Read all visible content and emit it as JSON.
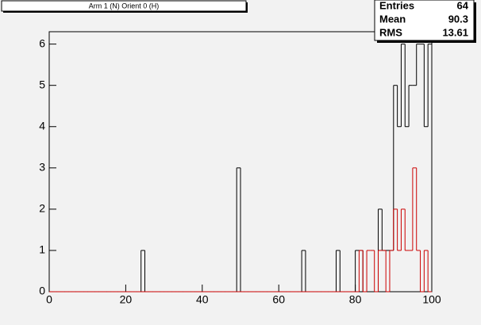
{
  "chart_data": {
    "type": "histogram",
    "title": "Arm 1 (N) Orient 0 (H)",
    "bins": [
      0,
      1,
      2,
      3,
      4,
      5,
      6,
      7,
      8,
      9,
      10,
      11,
      12,
      13,
      14,
      15,
      16,
      17,
      18,
      19,
      20,
      21,
      22,
      23,
      24,
      25,
      26,
      27,
      28,
      29,
      30,
      31,
      32,
      33,
      34,
      35,
      36,
      37,
      38,
      39,
      40,
      41,
      42,
      43,
      44,
      45,
      46,
      47,
      48,
      49,
      50,
      51,
      52,
      53,
      54,
      55,
      56,
      57,
      58,
      59,
      60,
      61,
      62,
      63,
      64,
      65,
      66,
      67,
      68,
      69,
      70,
      71,
      72,
      73,
      74,
      75,
      76,
      77,
      78,
      79,
      80,
      81,
      82,
      83,
      84,
      85,
      86,
      87,
      88,
      89,
      90,
      91,
      92,
      93,
      94,
      95,
      96,
      97,
      98,
      99,
      100
    ],
    "series": [
      {
        "color": "#000000",
        "values": [
          0,
          0,
          0,
          0,
          0,
          0,
          0,
          0,
          0,
          0,
          0,
          0,
          0,
          0,
          0,
          0,
          0,
          0,
          0,
          0,
          0,
          0,
          0,
          0,
          1,
          0,
          0,
          0,
          0,
          0,
          0,
          0,
          0,
          0,
          0,
          0,
          0,
          0,
          0,
          0,
          0,
          0,
          0,
          0,
          0,
          0,
          0,
          0,
          0,
          3,
          0,
          0,
          0,
          0,
          0,
          0,
          0,
          0,
          0,
          0,
          0,
          0,
          0,
          0,
          0,
          0,
          1,
          0,
          0,
          0,
          0,
          0,
          0,
          0,
          0,
          1,
          0,
          0,
          0,
          0,
          1,
          1,
          0,
          0,
          0,
          0,
          2,
          1,
          1,
          1,
          5,
          4,
          6,
          4,
          5,
          5,
          6,
          6,
          4,
          6
        ]
      },
      {
        "color": "#cc0000",
        "values": [
          0,
          0,
          0,
          0,
          0,
          0,
          0,
          0,
          0,
          0,
          0,
          0,
          0,
          0,
          0,
          0,
          0,
          0,
          0,
          0,
          0,
          0,
          0,
          0,
          0,
          0,
          0,
          0,
          0,
          0,
          0,
          0,
          0,
          0,
          0,
          0,
          0,
          0,
          0,
          0,
          0,
          0,
          0,
          0,
          0,
          0,
          0,
          0,
          0,
          0,
          0,
          0,
          0,
          0,
          0,
          0,
          0,
          0,
          0,
          0,
          0,
          0,
          0,
          0,
          0,
          0,
          0,
          0,
          0,
          0,
          0,
          0,
          0,
          0,
          0,
          0,
          0,
          0,
          0,
          0,
          0,
          1,
          0,
          1,
          1,
          0,
          1,
          1,
          0,
          1,
          2,
          1,
          2,
          1,
          1,
          3,
          1,
          0,
          1,
          0
        ]
      }
    ],
    "xlim": [
      0,
      100
    ],
    "xticks": [
      0,
      20,
      40,
      60,
      80,
      100
    ],
    "ylim": [
      0,
      6.3
    ],
    "yticks": [
      0,
      1,
      2,
      3,
      4,
      5,
      6
    ],
    "stats": [
      {
        "label": "Entries",
        "value": 64
      },
      {
        "label": "Mean",
        "value": 90.3
      },
      {
        "label": "RMS",
        "value": 13.61
      }
    ]
  }
}
